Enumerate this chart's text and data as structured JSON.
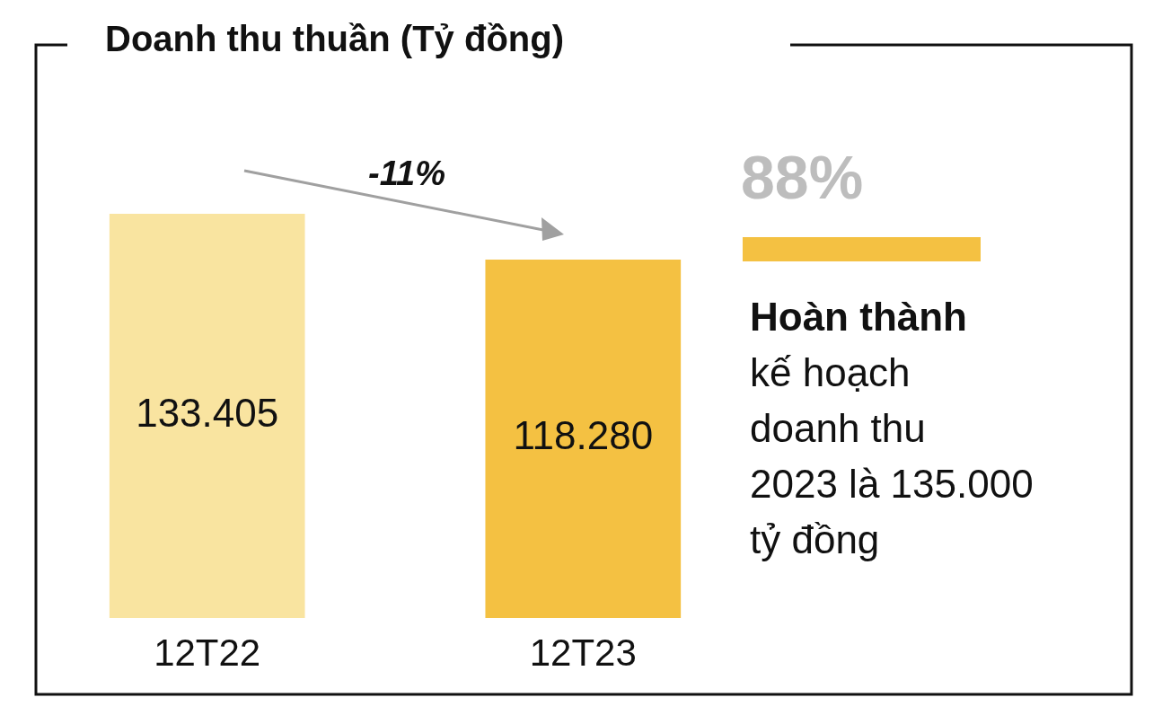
{
  "chart_data": {
    "type": "bar",
    "title": "Doanh thu thuần (Tỷ đồng)",
    "categories": [
      "12T22",
      "12T23"
    ],
    "values": [
      133405,
      118280
    ],
    "colors": [
      "#f9e4a0",
      "#f4c142"
    ],
    "value_labels": [
      "133.405",
      "118.280"
    ],
    "annotations": [
      "-11%",
      "88%",
      "Hoàn thành",
      "kế hoạch",
      "doanh thu",
      "2023 là 135.000",
      "tỷ đồng"
    ]
  }
}
